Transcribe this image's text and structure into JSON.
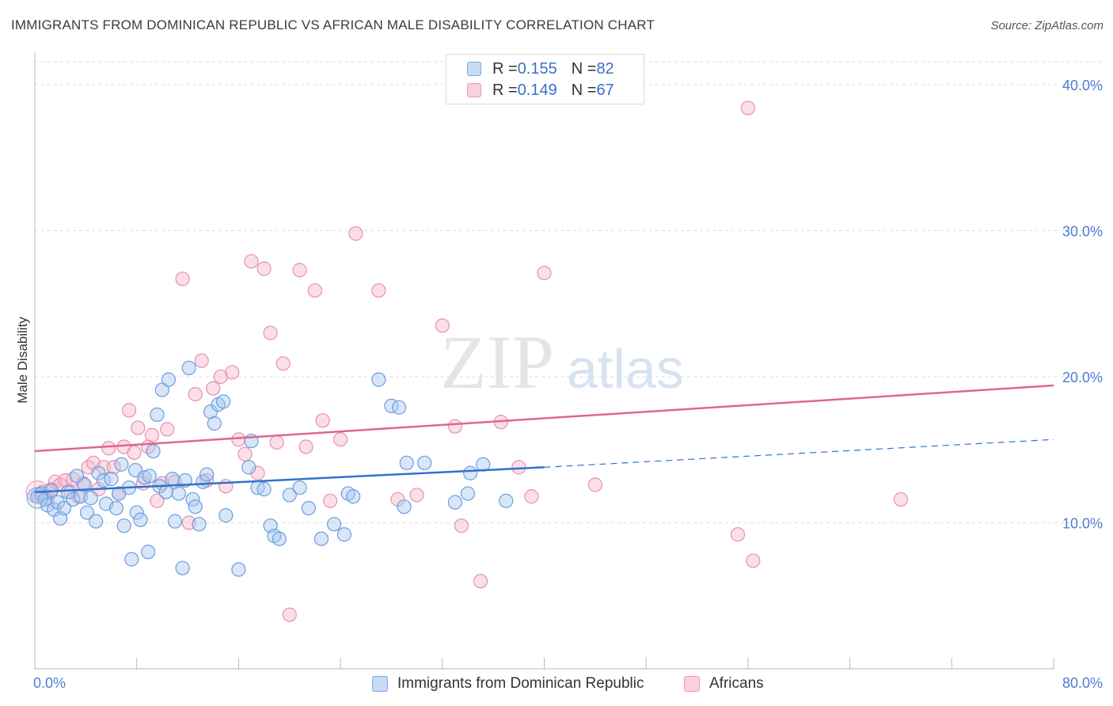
{
  "title": "IMMIGRANTS FROM DOMINICAN REPUBLIC VS AFRICAN MALE DISABILITY CORRELATION CHART",
  "source": "Source: ZipAtlas.com",
  "watermark": {
    "zip": "ZIP",
    "atlas": "atlas"
  },
  "legend_top": {
    "rows": [
      {
        "r_label": "R = ",
        "r_value": "0.155",
        "n_label": "N = ",
        "n_value": "82",
        "color": "#a8c8f0"
      },
      {
        "r_label": "R = ",
        "r_value": "0.149",
        "n_label": "N = ",
        "n_value": "67",
        "color": "#f5b8cc"
      }
    ]
  },
  "legend_bottom": {
    "series1": "Immigrants from Dominican Republic",
    "series2": "Africans"
  },
  "colors": {
    "blue_fill": "#a8c8f0",
    "blue_stroke": "#6a9ee0",
    "blue_line": "#2f72d0",
    "pink_fill": "#f5b8cc",
    "pink_stroke": "#e890ac",
    "pink_line": "#e0668e",
    "grid": "#dcdcdc",
    "axis_text": "#4a7fd0"
  },
  "chart_data": {
    "type": "scatter",
    "title": "IMMIGRANTS FROM DOMINICAN REPUBLIC VS AFRICAN MALE DISABILITY CORRELATION CHART",
    "xlabel": "",
    "ylabel": "Male Disability",
    "xlim": [
      0,
      80
    ],
    "ylim": [
      0,
      42
    ],
    "x_tick_labels": [
      "0.0%",
      "80.0%"
    ],
    "y_ticks": [
      10,
      20,
      30,
      40
    ],
    "y_tick_labels": [
      "10.0%",
      "20.0%",
      "30.0%",
      "40.0%"
    ],
    "grid": "horizontal dashed",
    "legend_placement": "top-center",
    "series": [
      {
        "name": "Immigrants from Dominican Republic",
        "R": 0.155,
        "N": 82,
        "trend_solid": [
          [
            0,
            12.1
          ],
          [
            40,
            13.8
          ]
        ],
        "trend_dashed": [
          [
            40,
            13.8
          ],
          [
            80,
            15.7
          ]
        ],
        "points": [
          [
            0.2,
            11.8
          ],
          [
            0.5,
            12.0
          ],
          [
            0.8,
            11.6
          ],
          [
            1.0,
            11.2
          ],
          [
            1.3,
            12.2
          ],
          [
            1.5,
            10.9
          ],
          [
            1.8,
            11.4
          ],
          [
            2.0,
            10.3
          ],
          [
            2.3,
            11.0
          ],
          [
            2.6,
            12.1
          ],
          [
            3.0,
            11.6
          ],
          [
            3.3,
            13.2
          ],
          [
            3.6,
            11.8
          ],
          [
            3.9,
            12.6
          ],
          [
            4.1,
            10.7
          ],
          [
            4.4,
            11.7
          ],
          [
            4.8,
            10.1
          ],
          [
            5.0,
            13.4
          ],
          [
            5.4,
            12.9
          ],
          [
            5.6,
            11.3
          ],
          [
            6.0,
            13.0
          ],
          [
            6.4,
            11.0
          ],
          [
            6.6,
            12.0
          ],
          [
            6.8,
            14.0
          ],
          [
            7.0,
            9.8
          ],
          [
            7.4,
            12.4
          ],
          [
            7.6,
            7.5
          ],
          [
            7.9,
            13.6
          ],
          [
            8.0,
            10.7
          ],
          [
            8.3,
            10.2
          ],
          [
            8.6,
            13.1
          ],
          [
            8.9,
            8.0
          ],
          [
            9.0,
            13.2
          ],
          [
            9.3,
            14.9
          ],
          [
            9.6,
            17.4
          ],
          [
            9.8,
            12.5
          ],
          [
            10.0,
            19.1
          ],
          [
            10.3,
            12.1
          ],
          [
            10.5,
            19.8
          ],
          [
            10.8,
            13.0
          ],
          [
            11.0,
            10.1
          ],
          [
            11.3,
            12.0
          ],
          [
            11.6,
            6.9
          ],
          [
            11.8,
            12.9
          ],
          [
            12.1,
            20.6
          ],
          [
            12.4,
            11.6
          ],
          [
            12.6,
            11.1
          ],
          [
            12.9,
            9.9
          ],
          [
            13.2,
            12.8
          ],
          [
            13.5,
            13.3
          ],
          [
            13.8,
            17.6
          ],
          [
            14.1,
            16.8
          ],
          [
            14.4,
            18.1
          ],
          [
            14.8,
            18.3
          ],
          [
            15.0,
            10.5
          ],
          [
            16.0,
            6.8
          ],
          [
            16.8,
            13.8
          ],
          [
            17.0,
            15.6
          ],
          [
            17.5,
            12.4
          ],
          [
            18.0,
            12.3
          ],
          [
            18.5,
            9.8
          ],
          [
            18.8,
            9.1
          ],
          [
            19.2,
            8.9
          ],
          [
            20.0,
            11.9
          ],
          [
            20.8,
            12.4
          ],
          [
            21.5,
            11.0
          ],
          [
            22.5,
            8.9
          ],
          [
            23.5,
            9.9
          ],
          [
            24.3,
            9.2
          ],
          [
            24.6,
            12.0
          ],
          [
            25.0,
            11.8
          ],
          [
            27.0,
            19.8
          ],
          [
            28.0,
            18.0
          ],
          [
            28.6,
            17.9
          ],
          [
            29.0,
            11.1
          ],
          [
            29.2,
            14.1
          ],
          [
            30.6,
            14.1
          ],
          [
            33.0,
            11.4
          ],
          [
            34.0,
            12.0
          ],
          [
            34.2,
            13.4
          ],
          [
            35.2,
            14.0
          ],
          [
            37.0,
            11.5
          ]
        ]
      },
      {
        "name": "Africans",
        "R": 0.149,
        "N": 67,
        "trend_solid": [
          [
            0,
            14.9
          ],
          [
            80,
            19.4
          ]
        ],
        "points": [
          [
            0.3,
            11.9
          ],
          [
            0.6,
            12.1
          ],
          [
            1.0,
            11.7
          ],
          [
            1.3,
            12.3
          ],
          [
            1.6,
            12.8
          ],
          [
            2.0,
            12.6
          ],
          [
            2.4,
            12.9
          ],
          [
            2.8,
            12.1
          ],
          [
            3.0,
            13.0
          ],
          [
            3.4,
            11.8
          ],
          [
            3.8,
            12.7
          ],
          [
            4.2,
            13.8
          ],
          [
            4.6,
            14.1
          ],
          [
            5.0,
            12.3
          ],
          [
            5.4,
            13.8
          ],
          [
            5.8,
            15.1
          ],
          [
            6.2,
            13.8
          ],
          [
            6.6,
            12.0
          ],
          [
            7.0,
            15.2
          ],
          [
            7.4,
            17.7
          ],
          [
            7.8,
            14.8
          ],
          [
            8.1,
            16.5
          ],
          [
            8.5,
            12.7
          ],
          [
            8.9,
            15.2
          ],
          [
            9.2,
            16.0
          ],
          [
            9.6,
            11.5
          ],
          [
            10.0,
            12.7
          ],
          [
            10.4,
            16.4
          ],
          [
            11.0,
            12.8
          ],
          [
            11.6,
            26.7
          ],
          [
            12.1,
            10.0
          ],
          [
            12.6,
            18.8
          ],
          [
            13.1,
            21.1
          ],
          [
            13.5,
            12.9
          ],
          [
            14.0,
            19.2
          ],
          [
            14.6,
            20.0
          ],
          [
            15.0,
            12.5
          ],
          [
            15.5,
            20.3
          ],
          [
            16.0,
            15.7
          ],
          [
            16.5,
            14.7
          ],
          [
            17.0,
            27.9
          ],
          [
            17.5,
            13.4
          ],
          [
            18.0,
            27.4
          ],
          [
            18.5,
            23.0
          ],
          [
            19.0,
            15.5
          ],
          [
            19.5,
            20.9
          ],
          [
            20.0,
            3.7
          ],
          [
            20.8,
            27.3
          ],
          [
            21.3,
            15.2
          ],
          [
            22.0,
            25.9
          ],
          [
            22.6,
            17.0
          ],
          [
            23.2,
            11.5
          ],
          [
            24.0,
            15.7
          ],
          [
            25.2,
            29.8
          ],
          [
            27.0,
            25.9
          ],
          [
            28.5,
            11.6
          ],
          [
            30.0,
            11.9
          ],
          [
            32.0,
            23.5
          ],
          [
            33.0,
            16.6
          ],
          [
            33.5,
            9.8
          ],
          [
            35.0,
            6.0
          ],
          [
            36.6,
            16.9
          ],
          [
            38.0,
            13.8
          ],
          [
            39.0,
            11.8
          ],
          [
            40.0,
            27.1
          ],
          [
            44.0,
            12.6
          ],
          [
            56.0,
            38.4
          ]
        ],
        "extra_points": [
          [
            55.2,
            9.2
          ],
          [
            56.4,
            7.4
          ],
          [
            68.0,
            11.6
          ]
        ]
      }
    ]
  }
}
